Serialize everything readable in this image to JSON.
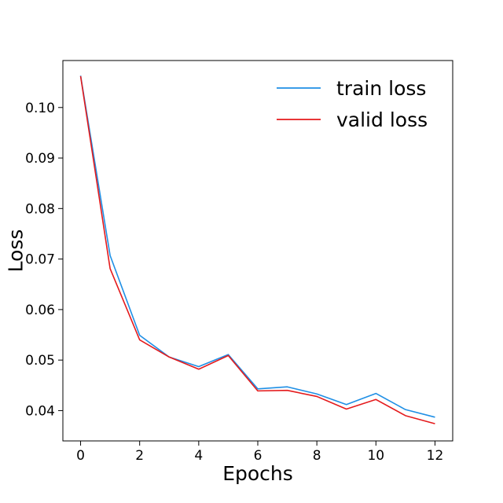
{
  "chart_data": {
    "type": "line",
    "title": "",
    "xlabel": "Epochs",
    "ylabel": "Loss",
    "xlim": [
      -0.6,
      12.6
    ],
    "ylim": [
      0.034,
      0.1093
    ],
    "xticks": [
      0,
      2,
      4,
      6,
      8,
      10,
      12
    ],
    "xtick_labels": [
      "0",
      "2",
      "4",
      "6",
      "8",
      "10",
      "12"
    ],
    "yticks": [
      0.04,
      0.05,
      0.06,
      0.07,
      0.08,
      0.09,
      0.1
    ],
    "ytick_labels": [
      "0.04",
      "0.05",
      "0.06",
      "0.07",
      "0.08",
      "0.09",
      "0.10"
    ],
    "grid": false,
    "legend_position": "top-right",
    "x": [
      0,
      1,
      2,
      3,
      4,
      5,
      6,
      7,
      8,
      9,
      10,
      11,
      12
    ],
    "series": [
      {
        "name": "train loss",
        "color": "#1f8fe5",
        "values": [
          0.1063,
          0.0707,
          0.0549,
          0.0506,
          0.0487,
          0.0511,
          0.0443,
          0.0447,
          0.0433,
          0.0412,
          0.0434,
          0.0402,
          0.0387
        ]
      },
      {
        "name": "valid loss",
        "color": "#e41a1c",
        "values": [
          0.1062,
          0.0681,
          0.054,
          0.0506,
          0.0482,
          0.0509,
          0.0439,
          0.044,
          0.0428,
          0.0403,
          0.0422,
          0.039,
          0.0374
        ]
      }
    ]
  }
}
